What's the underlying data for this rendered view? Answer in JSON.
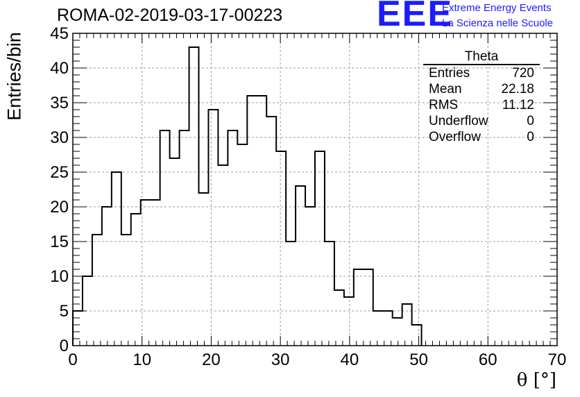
{
  "chart_data": {
    "type": "bar",
    "title": "ROMA-02-2019-03-17-00223",
    "xlabel": "θ [°]",
    "ylabel": "Entries/bin",
    "xlim": [
      0,
      70
    ],
    "ylim": [
      0,
      45
    ],
    "xticks": [
      0,
      10,
      20,
      30,
      40,
      50,
      60,
      70
    ],
    "yticks": [
      0,
      5,
      10,
      15,
      20,
      25,
      30,
      35,
      40,
      45
    ],
    "grid": true,
    "bin_width": 1.4,
    "x": [
      0.7,
      2.1,
      3.5,
      4.9,
      6.3,
      7.7,
      9.1,
      10.5,
      11.9,
      13.3,
      14.7,
      16.1,
      17.5,
      18.9,
      20.3,
      21.7,
      23.1,
      24.5,
      25.9,
      27.3,
      28.7,
      30.1,
      31.5,
      32.9,
      34.3,
      35.7,
      37.1,
      38.5,
      39.9,
      41.3,
      42.7,
      44.1,
      45.5,
      46.9,
      48.3,
      49.7
    ],
    "values": [
      5,
      10,
      16,
      20,
      25,
      16,
      19,
      21,
      21,
      31,
      27,
      31,
      43,
      22,
      34,
      26,
      31,
      29,
      36,
      36,
      33,
      28,
      15,
      23,
      20,
      28,
      15,
      8,
      7,
      11,
      11,
      5,
      5,
      4,
      6,
      3
    ],
    "stats": {
      "title": "Theta",
      "rows": [
        {
          "label": "Entries",
          "value": "720"
        },
        {
          "label": "Mean",
          "value": "22.18"
        },
        {
          "label": "RMS",
          "value": "11.12"
        },
        {
          "label": "Underflow",
          "value": "0"
        },
        {
          "label": "Overflow",
          "value": "0"
        }
      ]
    },
    "line_color": "#000000",
    "grid_color": "#9a9a9a"
  },
  "logo": {
    "mark": "EEE",
    "line1": "Extreme Energy Events",
    "line2": "La Scienza nelle Scuole",
    "color": "#1c1cff"
  }
}
